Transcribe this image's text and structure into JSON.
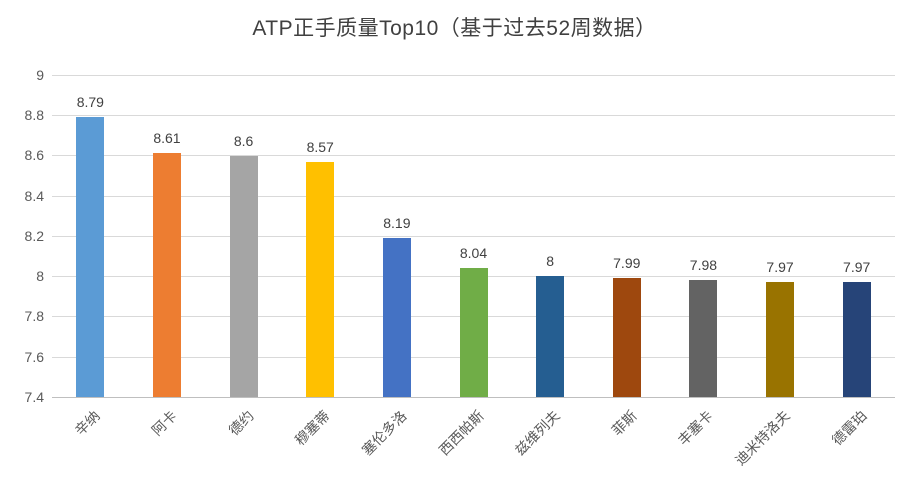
{
  "chart_data": {
    "type": "bar",
    "title": "ATP正手质量Top10（基于过去52周数据）",
    "categories": [
      "辛纳",
      "阿卡",
      "德约",
      "穆塞蒂",
      "塞伦多洛",
      "西西帕斯",
      "兹维列夫",
      "菲斯",
      "丰塞卡",
      "迪米特洛夫",
      "德雷珀"
    ],
    "values": [
      8.79,
      8.61,
      8.6,
      8.57,
      8.19,
      8.04,
      8,
      7.99,
      7.98,
      7.97,
      7.97
    ],
    "data_labels": [
      "8.79",
      "8.61",
      "8.6",
      "8.57",
      "8.19",
      "8.04",
      "8",
      "7.99",
      "7.98",
      "7.97",
      "7.97"
    ],
    "colors": [
      "#5B9BD5",
      "#ED7D31",
      "#A5A5A5",
      "#FFC000",
      "#4472C4",
      "#70AD47",
      "#255E91",
      "#9E480E",
      "#636363",
      "#997300",
      "#264478"
    ],
    "xlabel": "",
    "ylabel": "",
    "ylim": [
      7.4,
      9
    ],
    "ytick_step": 0.2,
    "ytick_labels": [
      "7.4",
      "7.6",
      "7.8",
      "8",
      "8.2",
      "8.4",
      "8.6",
      "8.8",
      "9"
    ],
    "grid": true,
    "legend": "none",
    "grid_color": "#D9D9D9",
    "title_color": "#404040",
    "tick_color": "#595959",
    "label_color": "#404040"
  }
}
